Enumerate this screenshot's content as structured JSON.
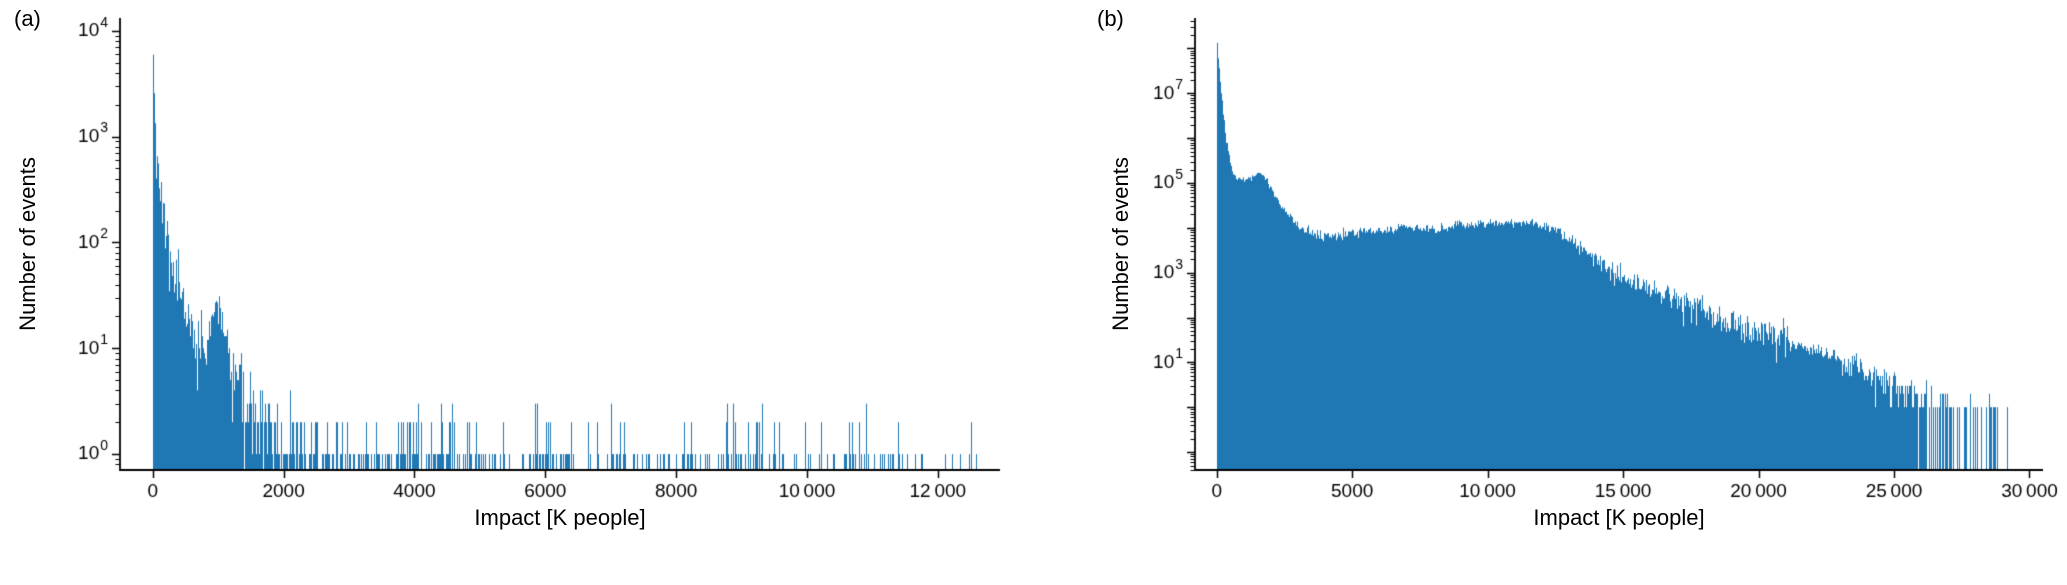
{
  "page": {
    "background": "#ffffff"
  },
  "chart_data": [
    {
      "type": "bar",
      "panel": "(a)",
      "xlabel": "Impact [K people]",
      "ylabel": "Number of events",
      "bar_color": "#1f77b4",
      "axis_color": "#000000",
      "grid": false,
      "y_scale": "log",
      "x_range": [
        -500,
        12950
      ],
      "xticks": [
        0,
        2000,
        4000,
        6000,
        8000,
        10000,
        12000
      ],
      "xtick_labels": [
        "0",
        "2000",
        "4000",
        "6000",
        "8000",
        "10 000",
        "12 000"
      ],
      "y_range_exp": [
        -0.15,
        4.12
      ],
      "ytick_label_exps": [
        0,
        1,
        2,
        3,
        4
      ],
      "seed": 7,
      "envelope_log10": [
        [
          0,
          3.85
        ],
        [
          15,
          3.55
        ],
        [
          30,
          3.1
        ],
        [
          45,
          2.85
        ],
        [
          60,
          2.65
        ],
        [
          80,
          2.55
        ],
        [
          100,
          2.5
        ],
        [
          130,
          2.4
        ],
        [
          160,
          2.28
        ],
        [
          200,
          2.05
        ],
        [
          240,
          1.92
        ],
        [
          280,
          1.8
        ],
        [
          320,
          1.68
        ],
        [
          360,
          1.58
        ],
        [
          400,
          1.5
        ],
        [
          450,
          1.4
        ],
        [
          500,
          1.33
        ],
        [
          550,
          1.24
        ],
        [
          600,
          1.17
        ],
        [
          650,
          1.1
        ],
        [
          700,
          1.05
        ],
        [
          750,
          1.01
        ],
        [
          800,
          0.98
        ],
        [
          850,
          1.08
        ],
        [
          900,
          1.3
        ],
        [
          950,
          1.45
        ],
        [
          1000,
          1.35
        ],
        [
          1050,
          1.22
        ],
        [
          1100,
          1.08
        ],
        [
          1150,
          0.95
        ],
        [
          1200,
          0.85
        ],
        [
          1300,
          0.7
        ],
        [
          1400,
          0.6
        ],
        [
          1500,
          0.5
        ],
        [
          1600,
          0.42
        ],
        [
          1700,
          0.35
        ],
        [
          1800,
          0.28
        ],
        [
          1900,
          0.2
        ],
        [
          2000,
          0.12
        ],
        [
          2200,
          0.0
        ],
        [
          2400,
          -0.08
        ],
        [
          2700,
          -0.15
        ],
        [
          3000,
          -0.12
        ],
        [
          3300,
          -0.18
        ],
        [
          3600,
          -0.1
        ],
        [
          3900,
          -0.02
        ],
        [
          4200,
          0.02
        ],
        [
          4500,
          0.0
        ],
        [
          4800,
          -0.08
        ],
        [
          5100,
          -0.15
        ],
        [
          5400,
          -0.25
        ],
        [
          5700,
          -0.3
        ],
        [
          6000,
          -0.22
        ],
        [
          6300,
          -0.3
        ],
        [
          6600,
          -0.35
        ],
        [
          6900,
          -0.3
        ],
        [
          7200,
          -0.35
        ],
        [
          7500,
          -0.42
        ],
        [
          7800,
          -0.32
        ],
        [
          8100,
          -0.35
        ],
        [
          8400,
          -0.4
        ],
        [
          8700,
          -0.3
        ],
        [
          9000,
          -0.18
        ],
        [
          9300,
          -0.25
        ],
        [
          9600,
          -0.4
        ],
        [
          9900,
          -0.5
        ],
        [
          10200,
          -0.55
        ],
        [
          10500,
          -0.5
        ],
        [
          10800,
          -0.55
        ],
        [
          11100,
          -0.6
        ],
        [
          11400,
          -0.65
        ],
        [
          11700,
          -0.6
        ],
        [
          12000,
          -0.55
        ],
        [
          12300,
          -0.7
        ],
        [
          12600,
          -0.85
        ]
      ]
    },
    {
      "type": "bar",
      "panel": "(b)",
      "xlabel": "Impact [K people]",
      "ylabel": "Number of events",
      "bar_color": "#1f77b4",
      "axis_color": "#000000",
      "grid": false,
      "y_scale": "log",
      "x_range": [
        -800,
        30500
      ],
      "xticks": [
        0,
        5000,
        10000,
        15000,
        20000,
        25000,
        30000
      ],
      "xtick_labels": [
        "0",
        "5000",
        "10 000",
        "15 000",
        "20 000",
        "25 000",
        "30 000"
      ],
      "y_range_exp": [
        -1.4,
        8.68
      ],
      "ytick_label_exps": [
        1,
        3,
        5,
        7
      ],
      "seed": 13,
      "envelope_log10": [
        [
          0,
          8.1
        ],
        [
          40,
          7.9
        ],
        [
          80,
          7.6
        ],
        [
          120,
          7.3
        ],
        [
          160,
          7.05
        ],
        [
          210,
          6.7
        ],
        [
          260,
          6.4
        ],
        [
          310,
          6.15
        ],
        [
          370,
          5.9
        ],
        [
          430,
          5.65
        ],
        [
          500,
          5.42
        ],
        [
          570,
          5.28
        ],
        [
          650,
          5.18
        ],
        [
          750,
          5.1
        ],
        [
          850,
          5.06
        ],
        [
          950,
          5.04
        ],
        [
          1100,
          5.06
        ],
        [
          1250,
          5.12
        ],
        [
          1400,
          5.17
        ],
        [
          1550,
          5.21
        ],
        [
          1700,
          5.19
        ],
        [
          1850,
          5.08
        ],
        [
          2000,
          4.9
        ],
        [
          2150,
          4.7
        ],
        [
          2300,
          4.55
        ],
        [
          2500,
          4.38
        ],
        [
          2700,
          4.25
        ],
        [
          2900,
          4.12
        ],
        [
          3100,
          4.02
        ],
        [
          3300,
          3.95
        ],
        [
          3500,
          3.9
        ],
        [
          3700,
          3.86
        ],
        [
          3900,
          3.83
        ],
        [
          4100,
          3.81
        ],
        [
          4300,
          3.8
        ],
        [
          4500,
          3.81
        ],
        [
          4700,
          3.84
        ],
        [
          4900,
          3.87
        ],
        [
          5100,
          3.9
        ],
        [
          5300,
          3.92
        ],
        [
          5500,
          3.94
        ],
        [
          5700,
          3.95
        ],
        [
          5900,
          3.94
        ],
        [
          6100,
          3.92
        ],
        [
          6300,
          3.94
        ],
        [
          6500,
          3.97
        ],
        [
          6700,
          4.0
        ],
        [
          6900,
          4.03
        ],
        [
          7100,
          4.02
        ],
        [
          7300,
          4.0
        ],
        [
          7500,
          3.98
        ],
        [
          7700,
          3.96
        ],
        [
          7900,
          3.95
        ],
        [
          8100,
          3.96
        ],
        [
          8300,
          3.98
        ],
        [
          8500,
          4.01
        ],
        [
          8700,
          4.04
        ],
        [
          8900,
          4.06
        ],
        [
          9100,
          4.07
        ],
        [
          9300,
          4.08
        ],
        [
          9500,
          4.08
        ],
        [
          9700,
          4.08
        ],
        [
          9900,
          4.09
        ],
        [
          10100,
          4.1
        ],
        [
          10300,
          4.12
        ],
        [
          10500,
          4.13
        ],
        [
          10700,
          4.14
        ],
        [
          10900,
          4.14
        ],
        [
          11100,
          4.13
        ],
        [
          11300,
          4.12
        ],
        [
          11500,
          4.1
        ],
        [
          11700,
          4.08
        ],
        [
          11900,
          4.05
        ],
        [
          12100,
          4.02
        ],
        [
          12300,
          3.98
        ],
        [
          12500,
          3.94
        ],
        [
          12700,
          3.88
        ],
        [
          12900,
          3.8
        ],
        [
          13100,
          3.72
        ],
        [
          13300,
          3.62
        ],
        [
          13500,
          3.52
        ],
        [
          13700,
          3.42
        ],
        [
          13900,
          3.32
        ],
        [
          14100,
          3.22
        ],
        [
          14300,
          3.13
        ],
        [
          14500,
          3.05
        ],
        [
          14700,
          2.98
        ],
        [
          14900,
          2.92
        ],
        [
          15200,
          2.83
        ],
        [
          15500,
          2.74
        ],
        [
          15800,
          2.66
        ],
        [
          16100,
          2.58
        ],
        [
          16400,
          2.51
        ],
        [
          16700,
          2.44
        ],
        [
          17000,
          2.37
        ],
        [
          17300,
          2.3
        ],
        [
          17600,
          2.24
        ],
        [
          17900,
          2.17
        ],
        [
          18200,
          2.11
        ],
        [
          18500,
          2.04
        ],
        [
          18800,
          1.98
        ],
        [
          19100,
          1.92
        ],
        [
          19400,
          1.85
        ],
        [
          19700,
          1.79
        ],
        [
          20000,
          1.73
        ],
        [
          20300,
          1.66
        ],
        [
          20600,
          1.6
        ],
        [
          20900,
          1.53
        ],
        [
          21200,
          1.47
        ],
        [
          21500,
          1.4
        ],
        [
          21800,
          1.33
        ],
        [
          22100,
          1.26
        ],
        [
          22400,
          1.19
        ],
        [
          22700,
          1.12
        ],
        [
          23000,
          1.05
        ],
        [
          23300,
          0.98
        ],
        [
          23600,
          0.9
        ],
        [
          23900,
          0.82
        ],
        [
          24200,
          0.74
        ],
        [
          24500,
          0.66
        ],
        [
          24800,
          0.58
        ],
        [
          25100,
          0.48
        ],
        [
          25400,
          0.38
        ],
        [
          25700,
          0.28
        ],
        [
          26000,
          0.18
        ],
        [
          26300,
          0.08
        ],
        [
          26600,
          -0.02
        ],
        [
          26900,
          -0.12
        ],
        [
          27200,
          -0.2
        ],
        [
          27500,
          -0.28
        ],
        [
          27800,
          -0.35
        ],
        [
          28100,
          -0.42
        ],
        [
          28400,
          -0.48
        ],
        [
          28700,
          -0.52
        ],
        [
          29000,
          -0.55
        ],
        [
          29300,
          -0.6
        ]
      ]
    }
  ]
}
